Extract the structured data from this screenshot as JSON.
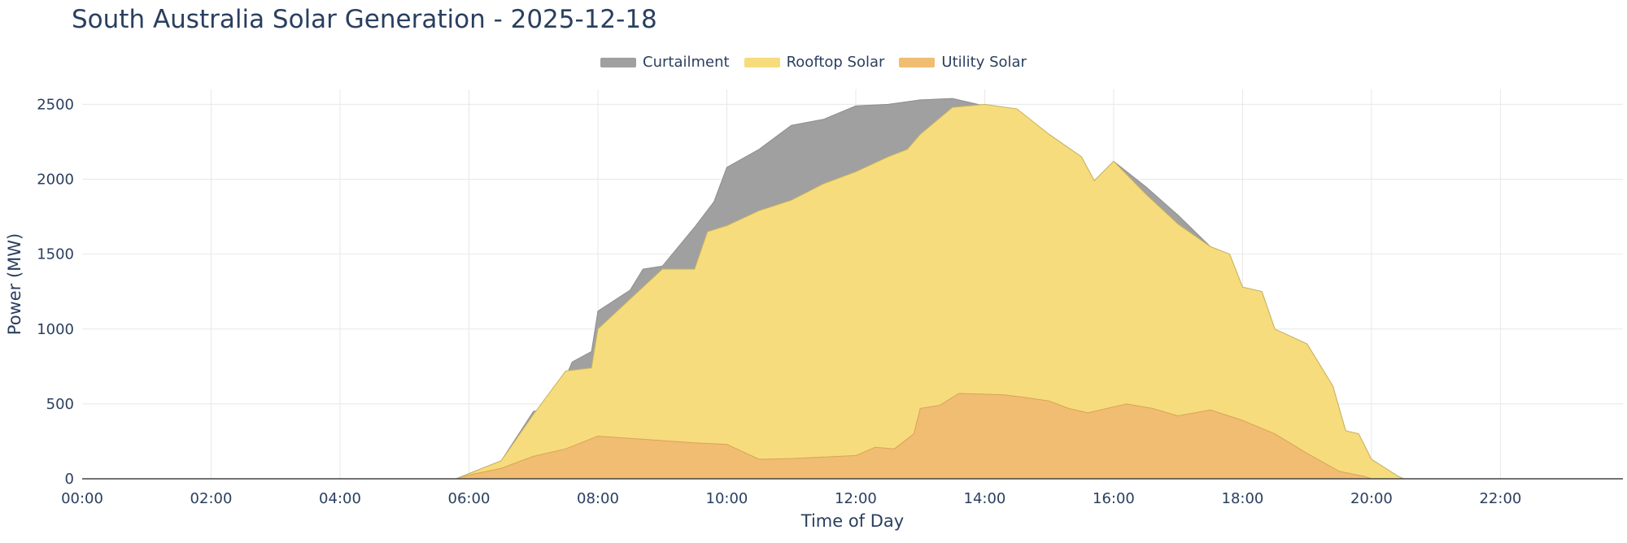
{
  "chart_data": {
    "type": "area",
    "title": "South Australia Solar Generation - 2025-12-18",
    "xlabel": "Time of Day",
    "ylabel": "Power (MW)",
    "xlim": [
      0,
      23.9
    ],
    "ylim": [
      0,
      2600
    ],
    "grid": true,
    "legend_position": "top-center",
    "stacked": true,
    "x_ticks": [
      "00:00",
      "02:00",
      "04:00",
      "06:00",
      "08:00",
      "10:00",
      "12:00",
      "14:00",
      "16:00",
      "18:00",
      "20:00",
      "22:00"
    ],
    "y_ticks": [
      0,
      500,
      1000,
      1500,
      2000,
      2500
    ],
    "series": [
      {
        "name": "Utility Solar",
        "color": "#f0bd72",
        "points": [
          [
            0,
            0
          ],
          [
            5.8,
            0
          ],
          [
            6.0,
            25
          ],
          [
            6.5,
            70
          ],
          [
            7.0,
            150
          ],
          [
            7.5,
            200
          ],
          [
            8.0,
            285
          ],
          [
            8.5,
            270
          ],
          [
            9.0,
            255
          ],
          [
            9.5,
            240
          ],
          [
            10.0,
            230
          ],
          [
            10.5,
            130
          ],
          [
            11.0,
            135
          ],
          [
            11.5,
            145
          ],
          [
            12.0,
            155
          ],
          [
            12.3,
            210
          ],
          [
            12.6,
            200
          ],
          [
            12.9,
            300
          ],
          [
            13.0,
            470
          ],
          [
            13.3,
            490
          ],
          [
            13.6,
            570
          ],
          [
            14.0,
            565
          ],
          [
            14.3,
            560
          ],
          [
            14.6,
            545
          ],
          [
            15.0,
            520
          ],
          [
            15.3,
            470
          ],
          [
            15.6,
            440
          ],
          [
            15.9,
            470
          ],
          [
            16.2,
            500
          ],
          [
            16.6,
            470
          ],
          [
            17.0,
            420
          ],
          [
            17.5,
            460
          ],
          [
            18.0,
            390
          ],
          [
            18.5,
            300
          ],
          [
            19.0,
            170
          ],
          [
            19.5,
            50
          ],
          [
            19.9,
            15
          ],
          [
            20.0,
            0
          ],
          [
            23.9,
            0
          ]
        ]
      },
      {
        "name": "Rooftop Solar",
        "color": "#f7dc7d",
        "points": [
          [
            0,
            0
          ],
          [
            5.8,
            0
          ],
          [
            6.0,
            35
          ],
          [
            6.5,
            120
          ],
          [
            7.0,
            430
          ],
          [
            7.5,
            720
          ],
          [
            7.9,
            740
          ],
          [
            8.0,
            1000
          ],
          [
            8.5,
            1200
          ],
          [
            9.0,
            1400
          ],
          [
            9.5,
            1400
          ],
          [
            9.7,
            1650
          ],
          [
            10.0,
            1690
          ],
          [
            10.5,
            1790
          ],
          [
            11.0,
            1860
          ],
          [
            11.5,
            1970
          ],
          [
            12.0,
            2050
          ],
          [
            12.5,
            2150
          ],
          [
            12.8,
            2200
          ],
          [
            13.0,
            2300
          ],
          [
            13.5,
            2480
          ],
          [
            14.0,
            2500
          ],
          [
            14.5,
            2470
          ],
          [
            15.0,
            2300
          ],
          [
            15.5,
            2150
          ],
          [
            15.7,
            1990
          ],
          [
            16.0,
            2120
          ],
          [
            16.5,
            1900
          ],
          [
            17.0,
            1700
          ],
          [
            17.5,
            1550
          ],
          [
            17.8,
            1500
          ],
          [
            18.0,
            1280
          ],
          [
            18.3,
            1250
          ],
          [
            18.5,
            1000
          ],
          [
            19.0,
            900
          ],
          [
            19.4,
            620
          ],
          [
            19.6,
            320
          ],
          [
            19.8,
            300
          ],
          [
            20.0,
            130
          ],
          [
            20.4,
            20
          ],
          [
            20.5,
            0
          ],
          [
            23.9,
            0
          ]
        ]
      },
      {
        "name": "Curtailment",
        "color": "#a0a0a0",
        "points": [
          [
            0,
            0
          ],
          [
            5.8,
            0
          ],
          [
            6.0,
            35
          ],
          [
            6.5,
            120
          ],
          [
            7.0,
            450
          ],
          [
            7.3,
            480
          ],
          [
            7.6,
            780
          ],
          [
            7.9,
            850
          ],
          [
            8.0,
            1120
          ],
          [
            8.5,
            1260
          ],
          [
            8.7,
            1400
          ],
          [
            9.0,
            1420
          ],
          [
            9.5,
            1680
          ],
          [
            9.8,
            1850
          ],
          [
            10.0,
            2080
          ],
          [
            10.5,
            2200
          ],
          [
            11.0,
            2360
          ],
          [
            11.5,
            2400
          ],
          [
            12.0,
            2490
          ],
          [
            12.5,
            2500
          ],
          [
            13.0,
            2530
          ],
          [
            13.5,
            2540
          ],
          [
            14.0,
            2490
          ],
          [
            14.5,
            2400
          ],
          [
            15.0,
            2300
          ],
          [
            15.5,
            2150
          ],
          [
            15.7,
            1990
          ],
          [
            16.0,
            2120
          ],
          [
            16.5,
            1950
          ],
          [
            17.0,
            1760
          ],
          [
            17.5,
            1550
          ],
          [
            17.8,
            1500
          ],
          [
            18.0,
            1280
          ],
          [
            18.3,
            1250
          ],
          [
            18.5,
            1000
          ],
          [
            19.0,
            900
          ],
          [
            19.4,
            620
          ],
          [
            19.6,
            320
          ],
          [
            19.8,
            300
          ],
          [
            20.0,
            130
          ],
          [
            20.4,
            20
          ],
          [
            20.5,
            0
          ],
          [
            23.9,
            0
          ]
        ]
      }
    ],
    "legend_order": [
      "Curtailment",
      "Rooftop Solar",
      "Utility Solar"
    ]
  },
  "colors": {
    "text": "#2a3f5f",
    "grid": "#e8e8e8",
    "axis": "#444444"
  }
}
